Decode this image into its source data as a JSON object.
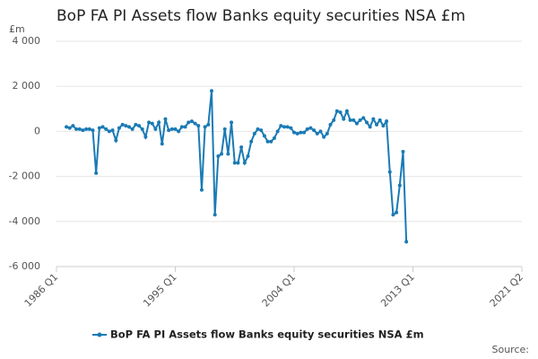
{
  "chart_data": {
    "type": "line",
    "title": "BoP FA PI Assets flow Banks equity securities NSA £m",
    "y_label": "£m",
    "source": "Source:",
    "x": [
      "1986 Q4",
      "1987 Q1",
      "1987 Q2",
      "1987 Q3",
      "1987 Q4",
      "1988 Q1",
      "1988 Q2",
      "1988 Q3",
      "1988 Q4",
      "1989 Q1",
      "1989 Q2",
      "1989 Q3",
      "1989 Q4",
      "1990 Q1",
      "1990 Q2",
      "1990 Q3",
      "1990 Q4",
      "1991 Q1",
      "1991 Q2",
      "1991 Q3",
      "1991 Q4",
      "1992 Q1",
      "1992 Q2",
      "1992 Q3",
      "1992 Q4",
      "1993 Q1",
      "1993 Q2",
      "1993 Q3",
      "1993 Q4",
      "1994 Q1",
      "1994 Q2",
      "1994 Q3",
      "1994 Q4",
      "1995 Q1",
      "1995 Q2",
      "1995 Q3",
      "1995 Q4",
      "1996 Q1",
      "1996 Q2",
      "1996 Q3",
      "1996 Q4",
      "1997 Q1",
      "1997 Q2",
      "1997 Q3",
      "1997 Q4",
      "1998 Q1",
      "1998 Q2",
      "1998 Q3",
      "1998 Q4",
      "1999 Q1",
      "1999 Q2",
      "1999 Q3",
      "1999 Q4",
      "2000 Q1",
      "2000 Q2",
      "2000 Q3",
      "2000 Q4",
      "2001 Q1",
      "2001 Q2",
      "2001 Q3",
      "2001 Q4",
      "2002 Q1",
      "2002 Q2",
      "2002 Q3",
      "2002 Q4",
      "2003 Q1",
      "2003 Q2",
      "2003 Q3",
      "2003 Q4",
      "2004 Q1",
      "2004 Q2",
      "2004 Q3",
      "2004 Q4",
      "2005 Q1",
      "2005 Q2",
      "2005 Q3",
      "2005 Q4",
      "2006 Q1",
      "2006 Q2",
      "2006 Q3",
      "2006 Q4",
      "2007 Q1",
      "2007 Q2",
      "2007 Q3",
      "2007 Q4",
      "2008 Q1",
      "2008 Q2",
      "2008 Q3",
      "2008 Q4",
      "2009 Q1",
      "2009 Q2",
      "2009 Q3",
      "2009 Q4",
      "2010 Q1",
      "2010 Q2",
      "2010 Q3",
      "2010 Q4",
      "2011 Q1",
      "2011 Q2",
      "2011 Q3",
      "2011 Q4",
      "2012 Q1",
      "2012 Q2",
      "2012 Q3"
    ],
    "series": [
      {
        "name": "BoP FA PI Assets flow Banks equity securities NSA £m",
        "color": "#1a7ab5",
        "values": [
          200,
          150,
          250,
          100,
          100,
          50,
          100,
          100,
          50,
          -1850,
          150,
          200,
          100,
          0,
          50,
          -400,
          150,
          300,
          250,
          200,
          100,
          300,
          250,
          100,
          -250,
          400,
          350,
          100,
          400,
          -550,
          550,
          50,
          100,
          100,
          0,
          200,
          200,
          400,
          450,
          350,
          250,
          -2600,
          200,
          300,
          1800,
          -3700,
          -1100,
          -1000,
          100,
          -1000,
          400,
          -1400,
          -1400,
          -700,
          -1400,
          -1100,
          -450,
          -100,
          100,
          50,
          -200,
          -450,
          -450,
          -300,
          0,
          250,
          200,
          200,
          150,
          -50,
          -100,
          -50,
          -50,
          100,
          150,
          50,
          -100,
          0,
          -250,
          -100,
          300,
          500,
          900,
          850,
          550,
          900,
          500,
          500,
          350,
          500,
          600,
          400,
          200,
          550,
          300,
          500,
          250,
          450,
          -1800,
          -3700,
          -3600,
          -2400,
          -900,
          -4900
        ]
      }
    ],
    "xlim": [
      "1986 Q1",
      "2021 Q2"
    ],
    "xticks": [
      "1986 Q1",
      "1995 Q1",
      "2004 Q1",
      "2013 Q1",
      "2021 Q2"
    ],
    "ylim": [
      -6000,
      4000
    ],
    "yticks": [
      {
        "value": -6000,
        "label": "-6 000"
      },
      {
        "value": -4000,
        "label": "-4 000"
      },
      {
        "value": -2000,
        "label": "-2 000"
      },
      0,
      {
        "value": 2000,
        "label": "2 000"
      },
      {
        "value": 4000,
        "label": "4 000"
      }
    ],
    "grid": true
  }
}
